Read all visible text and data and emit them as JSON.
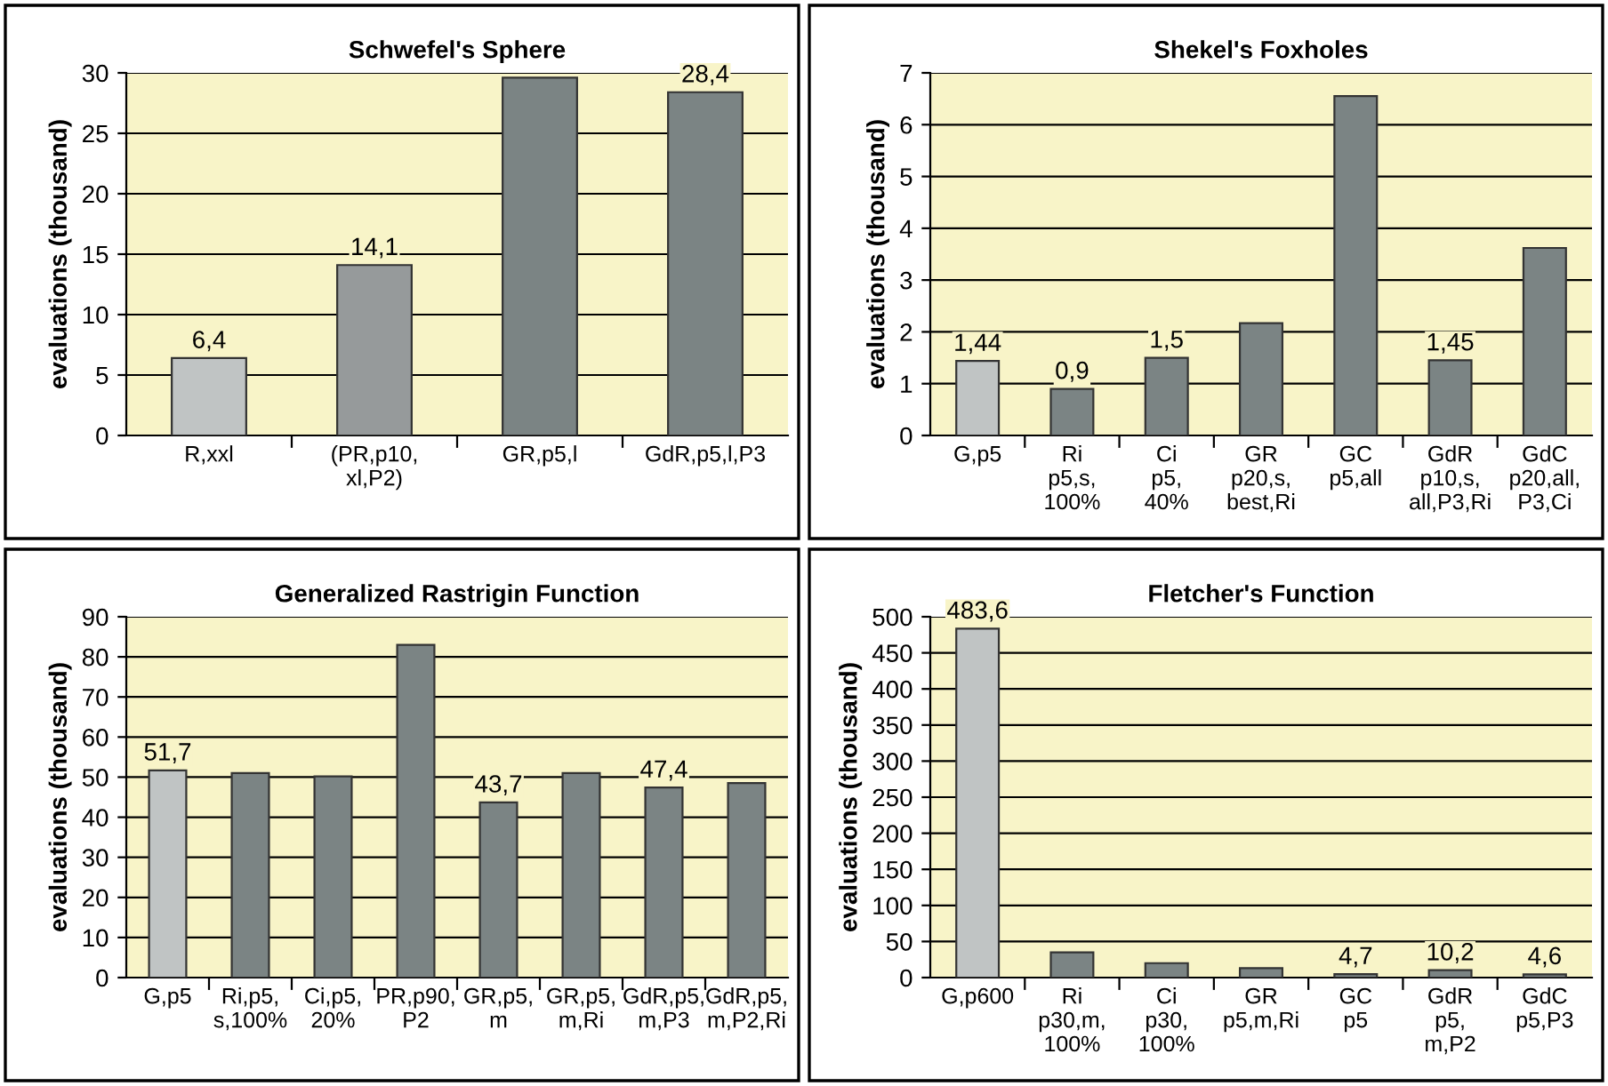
{
  "chart_data": [
    {
      "type": "bar",
      "title": "Schwefel's Sphere",
      "ylabel": "evaluations (thousand)",
      "categories": [
        "R,xxl",
        "(PR,p10,\nxl,P2)",
        "GR,p5,l",
        "GdR,p5,l,P3"
      ],
      "values": [
        6.4,
        14.1,
        29.6,
        28.4
      ],
      "colors": [
        "#c0c4c4",
        "#969a9b",
        "#7b8484",
        "#7b8484"
      ],
      "value_labels": [
        "6,4",
        "14,1",
        null,
        "28,4"
      ],
      "ylim": [
        0,
        30
      ],
      "yticks": [
        0,
        5,
        10,
        15,
        20,
        25,
        30
      ],
      "grid": "y",
      "legend": false
    },
    {
      "type": "bar",
      "title": "Shekel's Foxholes",
      "ylabel": "evaluations (thousand)",
      "categories": [
        "G,p5",
        "Ri\np5,s,\n100%",
        "Ci\np5,\n40%",
        "GR\np20,s,\nbest,Ri",
        "GC\np5,all",
        "GdR\np10,s,\nall,P3,Ri",
        "GdC\np20,all,\nP3,Ci"
      ],
      "values": [
        1.44,
        0.9,
        1.5,
        2.17,
        6.55,
        1.45,
        3.62
      ],
      "colors": [
        "#c0c4c4",
        "#7b8484",
        "#7b8484",
        "#7b8484",
        "#7b8484",
        "#7b8484",
        "#7b8484"
      ],
      "value_labels": [
        "1,44",
        "0,9",
        "1,5",
        null,
        null,
        "1,45",
        null
      ],
      "ylim": [
        0,
        7
      ],
      "yticks": [
        0,
        1,
        2,
        3,
        4,
        5,
        6,
        7
      ],
      "grid": "y",
      "legend": false
    },
    {
      "type": "bar",
      "title": "Generalized Rastrigin Function",
      "ylabel": "evaluations (thousand)",
      "categories": [
        "G,p5",
        "Ri,p5,\ns,100%",
        "Ci,p5,\n20%",
        "PR,p90,\nP2",
        "GR,p5,\nm",
        "GR,p5,\nm,Ri",
        "GdR,p5,\nm,P3",
        "GdR,p5,\nm,P2,Ri"
      ],
      "values": [
        51.7,
        51,
        50.2,
        83,
        43.7,
        51,
        47.4,
        48.5
      ],
      "colors": [
        "#c0c4c4",
        "#7b8484",
        "#7b8484",
        "#7b8484",
        "#7b8484",
        "#7b8484",
        "#7b8484",
        "#7b8484"
      ],
      "value_labels": [
        "51,7",
        null,
        null,
        null,
        "43,7",
        null,
        "47,4",
        null
      ],
      "ylim": [
        0,
        90
      ],
      "yticks": [
        0,
        10,
        20,
        30,
        40,
        50,
        60,
        70,
        80,
        90
      ],
      "grid": "y",
      "legend": false
    },
    {
      "type": "bar",
      "title": "Fletcher's Function",
      "ylabel": "evaluations (thousand)",
      "categories": [
        "G,p600",
        "Ri\np30,m,\n100%",
        "Ci\np30,\n100%",
        "GR\np5,m,Ri",
        "GC\np5",
        "GdR\np5,\nm,P2",
        "GdC\np5,P3"
      ],
      "values": [
        483.6,
        35,
        20,
        13,
        4.7,
        10.2,
        4.6
      ],
      "colors": [
        "#c0c4c4",
        "#7b8484",
        "#7b8484",
        "#7b8484",
        "#7b8484",
        "#7b8484",
        "#7b8484"
      ],
      "value_labels": [
        "483,6",
        null,
        null,
        null,
        "4,7",
        "10,2",
        "4,6"
      ],
      "ylim": [
        0,
        500
      ],
      "yticks": [
        0,
        50,
        100,
        150,
        200,
        250,
        300,
        350,
        400,
        450,
        500
      ],
      "grid": "y",
      "legend": false
    }
  ]
}
